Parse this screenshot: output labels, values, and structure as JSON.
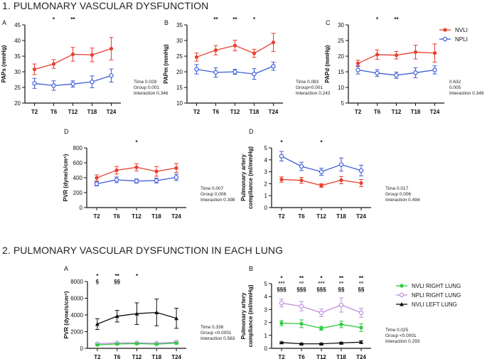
{
  "titles": {
    "section1": "1. PULMONARY VASCULAR DYSFUNCTION",
    "section2": "2. PULMONARY VASCULAR DYSFUNCTION IN EACH LUNG"
  },
  "legend_top": [
    {
      "name": "NVLI",
      "color": "#e8402f"
    },
    {
      "name": "NPLI",
      "color": "#3d5dd8"
    }
  ],
  "legend_bottom": [
    {
      "name": "NVLI RIGHT LUNG",
      "color": "#2ecc40"
    },
    {
      "name": "NPLI RIGHT LUNG",
      "color": "#c08fe0"
    },
    {
      "name": "NVLI LEFT LUNG",
      "color": "#111111"
    }
  ],
  "chart_data": [
    {
      "id": "A",
      "panel_label": "A",
      "type": "line",
      "ylabel": "PAPs (mmHg)",
      "ylim": [
        20,
        45
      ],
      "ticks": [
        "20",
        "25",
        "30",
        "35",
        "40",
        "45"
      ],
      "categories": [
        "T2",
        "T6",
        "T12",
        "T18",
        "T24"
      ],
      "series": [
        {
          "name": "NVLI",
          "color": "#e8402f",
          "values": [
            30.8,
            32.5,
            35.6,
            35.4,
            37.4
          ],
          "errors": [
            1.7,
            1.4,
            2.2,
            2.2,
            3.6
          ]
        },
        {
          "name": "NPLI",
          "color": "#3d5dd8",
          "values": [
            26.3,
            25.6,
            26.1,
            26.8,
            28.8
          ],
          "errors": [
            1.6,
            1.5,
            1.0,
            1.9,
            2.1
          ]
        }
      ],
      "annotations": [
        [
          "",
          "*",
          "**",
          "",
          ""
        ]
      ],
      "stats": [
        "Time 0.029",
        "Group 0.001",
        "Interaction 0.346"
      ]
    },
    {
      "id": "B",
      "panel_label": "B",
      "type": "line",
      "ylabel": "PAPm (mmHg)",
      "ylim": [
        10,
        35
      ],
      "ticks": [
        "10",
        "15",
        "20",
        "25",
        "30",
        "35"
      ],
      "categories": [
        "T2",
        "T6",
        "T12",
        "T18",
        "T24"
      ],
      "series": [
        {
          "name": "NVLI",
          "color": "#e8402f",
          "values": [
            24.7,
            26.9,
            28.4,
            25.9,
            29.4
          ],
          "errors": [
            1.3,
            1.5,
            1.7,
            1.3,
            2.9
          ]
        },
        {
          "name": "NPLI",
          "color": "#3d5dd8",
          "values": [
            20.8,
            19.8,
            20.0,
            19.3,
            21.8
          ],
          "errors": [
            1.5,
            1.5,
            0.8,
            1.7,
            1.3
          ]
        }
      ],
      "annotations": [
        [
          "",
          "**",
          "**",
          "*",
          ""
        ]
      ],
      "stats": [
        "Time 0.083",
        "Group<0.001",
        "Interaction 0.243"
      ]
    },
    {
      "id": "C",
      "panel_label": "C",
      "type": "line",
      "ylabel": "PAPd (mmHg)",
      "ylim": [
        5,
        30
      ],
      "ticks": [
        "5",
        "10",
        "15",
        "20",
        "25",
        "30"
      ],
      "categories": [
        "T2",
        "T6",
        "T12",
        "T18",
        "T24"
      ],
      "series": [
        {
          "name": "NVLI",
          "color": "#e8402f",
          "values": [
            17.7,
            20.5,
            20.3,
            21.3,
            21.0
          ],
          "errors": [
            1.0,
            1.5,
            1.2,
            2.2,
            2.9
          ]
        },
        {
          "name": "NPLI",
          "color": "#3d5dd8",
          "values": [
            15.6,
            14.6,
            13.9,
            14.7,
            15.6
          ],
          "errors": [
            1.3,
            1.1,
            1.0,
            1.6,
            1.3
          ]
        }
      ],
      "annotations": [
        [
          "",
          "*",
          "**",
          "",
          ""
        ]
      ],
      "stats": [
        "0.632",
        "0.005",
        "Interaction 0.349"
      ]
    },
    {
      "id": "D1",
      "panel_label": "D",
      "type": "line",
      "ylabel": "PVR (dyne/s/cm⁵)",
      "ylim": [
        0,
        800
      ],
      "ticks": [
        "0",
        "200",
        "400",
        "600",
        "800"
      ],
      "categories": [
        "T2",
        "T6",
        "T12",
        "T18",
        "T24"
      ],
      "series": [
        {
          "name": "NVLI",
          "color": "#e8402f",
          "values": [
            398,
            500,
            540,
            485,
            530
          ],
          "errors": [
            40,
            50,
            48,
            65,
            60
          ]
        },
        {
          "name": "NPLI",
          "color": "#3d5dd8",
          "values": [
            318,
            372,
            355,
            362,
            405
          ],
          "errors": [
            28,
            38,
            28,
            32,
            42
          ]
        }
      ],
      "annotations": [
        [
          "",
          "",
          "*",
          "",
          ""
        ]
      ],
      "stats": [
        "Time 0.007",
        "Group 0.006",
        "Interaction 0.398"
      ]
    },
    {
      "id": "D2",
      "panel_label": "D",
      "type": "line",
      "ylabel": "Pulmonary artery|compliance (ml/mmHg)",
      "ylim": [
        0,
        5
      ],
      "ticks": [
        "0",
        "1",
        "2",
        "3",
        "4",
        "5"
      ],
      "categories": [
        "T2",
        "T6",
        "T12",
        "T18",
        "T24"
      ],
      "series": [
        {
          "name": "NVLI",
          "color": "#e8402f",
          "values": [
            2.35,
            2.28,
            1.85,
            2.3,
            2.05
          ],
          "errors": [
            0.22,
            0.25,
            0.15,
            0.3,
            0.3
          ]
        },
        {
          "name": "NPLI",
          "color": "#3d5dd8",
          "values": [
            4.3,
            3.45,
            3.0,
            3.6,
            3.1
          ],
          "errors": [
            0.4,
            0.35,
            0.3,
            0.55,
            0.45
          ]
        }
      ],
      "annotations": [
        [
          "*",
          "",
          "*",
          "",
          ""
        ]
      ],
      "stats": [
        "Time 0.017",
        "Group 0.006",
        "Interaction 0.494"
      ]
    },
    {
      "id": "2A",
      "panel_label": "A",
      "type": "line",
      "ylabel": "PVR (dyne/s/cm⁵)",
      "ylim": [
        0,
        8000
      ],
      "ticks": [
        "0",
        "2000",
        "4000",
        "6000",
        "8000"
      ],
      "categories": [
        "T2",
        "T6",
        "T12",
        "T18",
        "T24"
      ],
      "series": [
        {
          "name": "NVLI LEFT LUNG",
          "color": "#111111",
          "values": [
            2900,
            3850,
            4150,
            4300,
            3600
          ],
          "errors": [
            650,
            700,
            1300,
            1600,
            1200
          ]
        },
        {
          "name": "NPLI RIGHT LUNG",
          "color": "#c08fe0",
          "values": [
            550,
            650,
            650,
            600,
            750
          ],
          "errors": [
            100,
            100,
            120,
            100,
            150
          ]
        },
        {
          "name": "NVLI RIGHT LUNG",
          "color": "#2ecc40",
          "values": [
            420,
            520,
            560,
            500,
            620
          ],
          "errors": [
            80,
            90,
            100,
            90,
            120
          ]
        }
      ],
      "annotations": [
        [
          "*",
          "**",
          "*",
          "",
          ""
        ],
        [
          "§",
          "§§",
          "",
          "",
          ""
        ]
      ],
      "stats": [
        "Time 0.336",
        "Group <0.0001",
        "Interaction 0.583"
      ]
    },
    {
      "id": "2B",
      "panel_label": "B",
      "type": "line",
      "ylabel": "Pulmonary artery|compliance (ml/mmHg)",
      "ylim": [
        0,
        5
      ],
      "ticks": [
        "0",
        "1",
        "2",
        "3",
        "4",
        "5"
      ],
      "categories": [
        "T2",
        "T6",
        "T12",
        "T18",
        "T24"
      ],
      "series": [
        {
          "name": "NPLI RIGHT LUNG",
          "color": "#c08fe0",
          "values": [
            3.5,
            3.25,
            2.75,
            3.35,
            2.75
          ],
          "errors": [
            0.3,
            0.35,
            0.3,
            0.55,
            0.35
          ]
        },
        {
          "name": "NVLI RIGHT LUNG",
          "color": "#2ecc40",
          "values": [
            1.95,
            1.9,
            1.55,
            1.85,
            1.6
          ],
          "errors": [
            0.2,
            0.3,
            0.15,
            0.25,
            0.3
          ]
        },
        {
          "name": "NVLI LEFT LUNG",
          "color": "#111111",
          "values": [
            0.45,
            0.35,
            0.35,
            0.42,
            0.48
          ],
          "errors": [
            0.05,
            0.05,
            0.05,
            0.05,
            0.1
          ]
        }
      ],
      "annotations": [
        [
          "*",
          "**",
          "*",
          "**",
          "**"
        ],
        [
          "°°°",
          "°°",
          "°°°",
          "°°",
          "°°"
        ],
        [
          "§§§",
          "§§§",
          "§§§",
          "§§",
          "§§"
        ]
      ],
      "stats": [
        "Time 0.025",
        "Group <0.0001",
        "Interaction 0.293"
      ]
    }
  ]
}
